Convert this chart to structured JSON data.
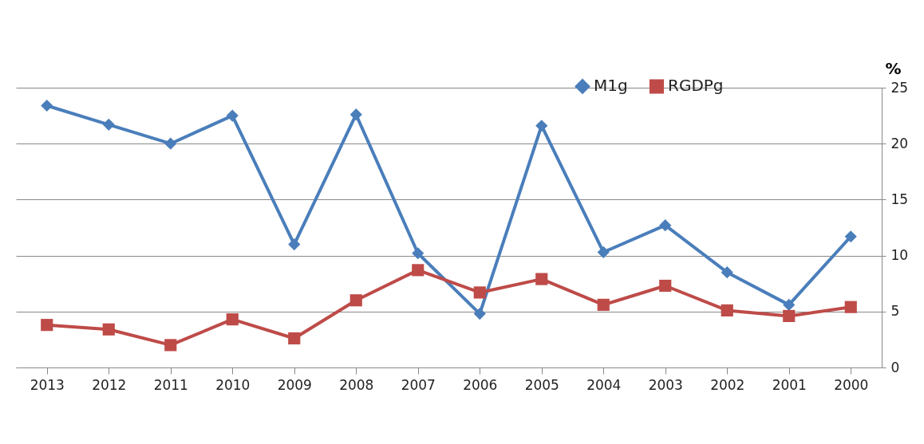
{
  "chart_data": {
    "type": "line",
    "ylabel": "%",
    "categories": [
      "2013",
      "2012",
      "2011",
      "2010",
      "2009",
      "2008",
      "2007",
      "2006",
      "2005",
      "2004",
      "2003",
      "2002",
      "2001",
      "2000"
    ],
    "series": [
      {
        "name": "M1g",
        "color": "#4a7ebb",
        "marker": "diamond",
        "values": [
          23.4,
          21.7,
          20.0,
          22.5,
          11.0,
          22.6,
          10.2,
          4.8,
          21.6,
          10.3,
          12.7,
          8.5,
          5.6,
          11.7
        ]
      },
      {
        "name": "RGDPg",
        "color": "#be4b48",
        "marker": "square",
        "values": [
          3.8,
          3.4,
          2.0,
          4.3,
          2.6,
          6.0,
          8.7,
          6.7,
          7.9,
          5.6,
          7.3,
          5.1,
          4.6,
          5.4
        ]
      }
    ],
    "ylim": [
      0,
      25
    ],
    "yticks": [
      0,
      5,
      10,
      15,
      20,
      25
    ],
    "grid": "y",
    "legend": "top right",
    "line_style": "solid"
  }
}
